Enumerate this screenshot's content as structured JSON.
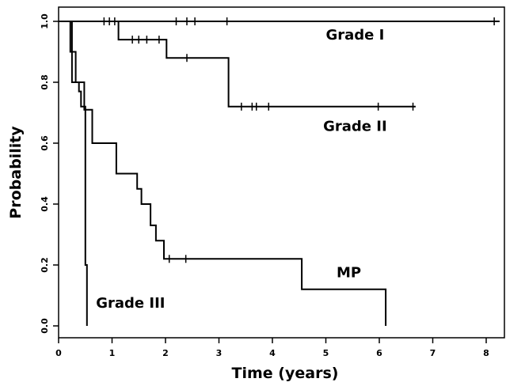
{
  "chart_data": {
    "type": "line",
    "step": true,
    "title": "",
    "xlabel": "Time (years)",
    "ylabel": "Probability",
    "xlim": [
      0,
      8.25
    ],
    "ylim": [
      -0.04,
      1.04
    ],
    "xticks": [
      0,
      1,
      2,
      3,
      4,
      5,
      6,
      7,
      8
    ],
    "yticks": [
      0.0,
      0.2,
      0.4,
      0.6,
      0.8,
      1.0
    ],
    "ytick_labels": [
      "0.0",
      "0.2",
      "0.4",
      "0.6",
      "0.8",
      "1.0"
    ],
    "grid": false,
    "series": [
      {
        "name": "Grade I",
        "label_pos": [
          5.0,
          0.94
        ],
        "steps": [
          [
            0,
            1.0
          ],
          [
            8.25,
            1.0
          ]
        ],
        "censored": [
          [
            0.85,
            1.0
          ],
          [
            0.95,
            1.0
          ],
          [
            1.05,
            1.0
          ],
          [
            2.2,
            1.0
          ],
          [
            2.4,
            1.0
          ],
          [
            2.55,
            1.0
          ],
          [
            3.15,
            1.0
          ],
          [
            8.15,
            1.0
          ]
        ]
      },
      {
        "name": "Grade II",
        "label_pos": [
          4.95,
          0.64
        ],
        "steps": [
          [
            0,
            1.0
          ],
          [
            1.12,
            1.0
          ],
          [
            1.12,
            0.94
          ],
          [
            2.02,
            0.94
          ],
          [
            2.02,
            0.88
          ],
          [
            3.18,
            0.88
          ],
          [
            3.18,
            0.72
          ],
          [
            6.68,
            0.72
          ]
        ],
        "censored": [
          [
            1.38,
            0.94
          ],
          [
            1.5,
            0.94
          ],
          [
            1.65,
            0.94
          ],
          [
            1.88,
            0.94
          ],
          [
            2.4,
            0.88
          ],
          [
            3.42,
            0.72
          ],
          [
            3.62,
            0.72
          ],
          [
            3.7,
            0.72
          ],
          [
            3.93,
            0.72
          ],
          [
            5.98,
            0.72
          ],
          [
            6.63,
            0.72
          ]
        ]
      },
      {
        "name": "MP",
        "label_pos": [
          5.2,
          0.16
        ],
        "steps": [
          [
            0,
            1.0
          ],
          [
            0.25,
            1.0
          ],
          [
            0.25,
            0.8
          ],
          [
            0.48,
            0.8
          ],
          [
            0.48,
            0.71
          ],
          [
            0.63,
            0.71
          ],
          [
            0.63,
            0.6
          ],
          [
            1.08,
            0.6
          ],
          [
            1.08,
            0.5
          ],
          [
            1.47,
            0.5
          ],
          [
            1.47,
            0.45
          ],
          [
            1.55,
            0.45
          ],
          [
            1.55,
            0.4
          ],
          [
            1.72,
            0.4
          ],
          [
            1.72,
            0.33
          ],
          [
            1.82,
            0.33
          ],
          [
            1.82,
            0.28
          ],
          [
            1.97,
            0.28
          ],
          [
            1.97,
            0.22
          ],
          [
            4.55,
            0.22
          ],
          [
            4.55,
            0.12
          ],
          [
            6.12,
            0.12
          ],
          [
            6.12,
            0.0
          ]
        ],
        "censored": [
          [
            2.07,
            0.22
          ],
          [
            2.38,
            0.22
          ]
        ]
      },
      {
        "name": "Grade III",
        "label_pos": [
          0.7,
          0.06
        ],
        "steps": [
          [
            0,
            1.0
          ],
          [
            0.22,
            1.0
          ],
          [
            0.22,
            0.9
          ],
          [
            0.32,
            0.9
          ],
          [
            0.32,
            0.8
          ],
          [
            0.38,
            0.8
          ],
          [
            0.38,
            0.77
          ],
          [
            0.42,
            0.77
          ],
          [
            0.42,
            0.72
          ],
          [
            0.5,
            0.72
          ],
          [
            0.5,
            0.2
          ],
          [
            0.53,
            0.2
          ],
          [
            0.53,
            0.0
          ]
        ],
        "censored": []
      }
    ]
  }
}
